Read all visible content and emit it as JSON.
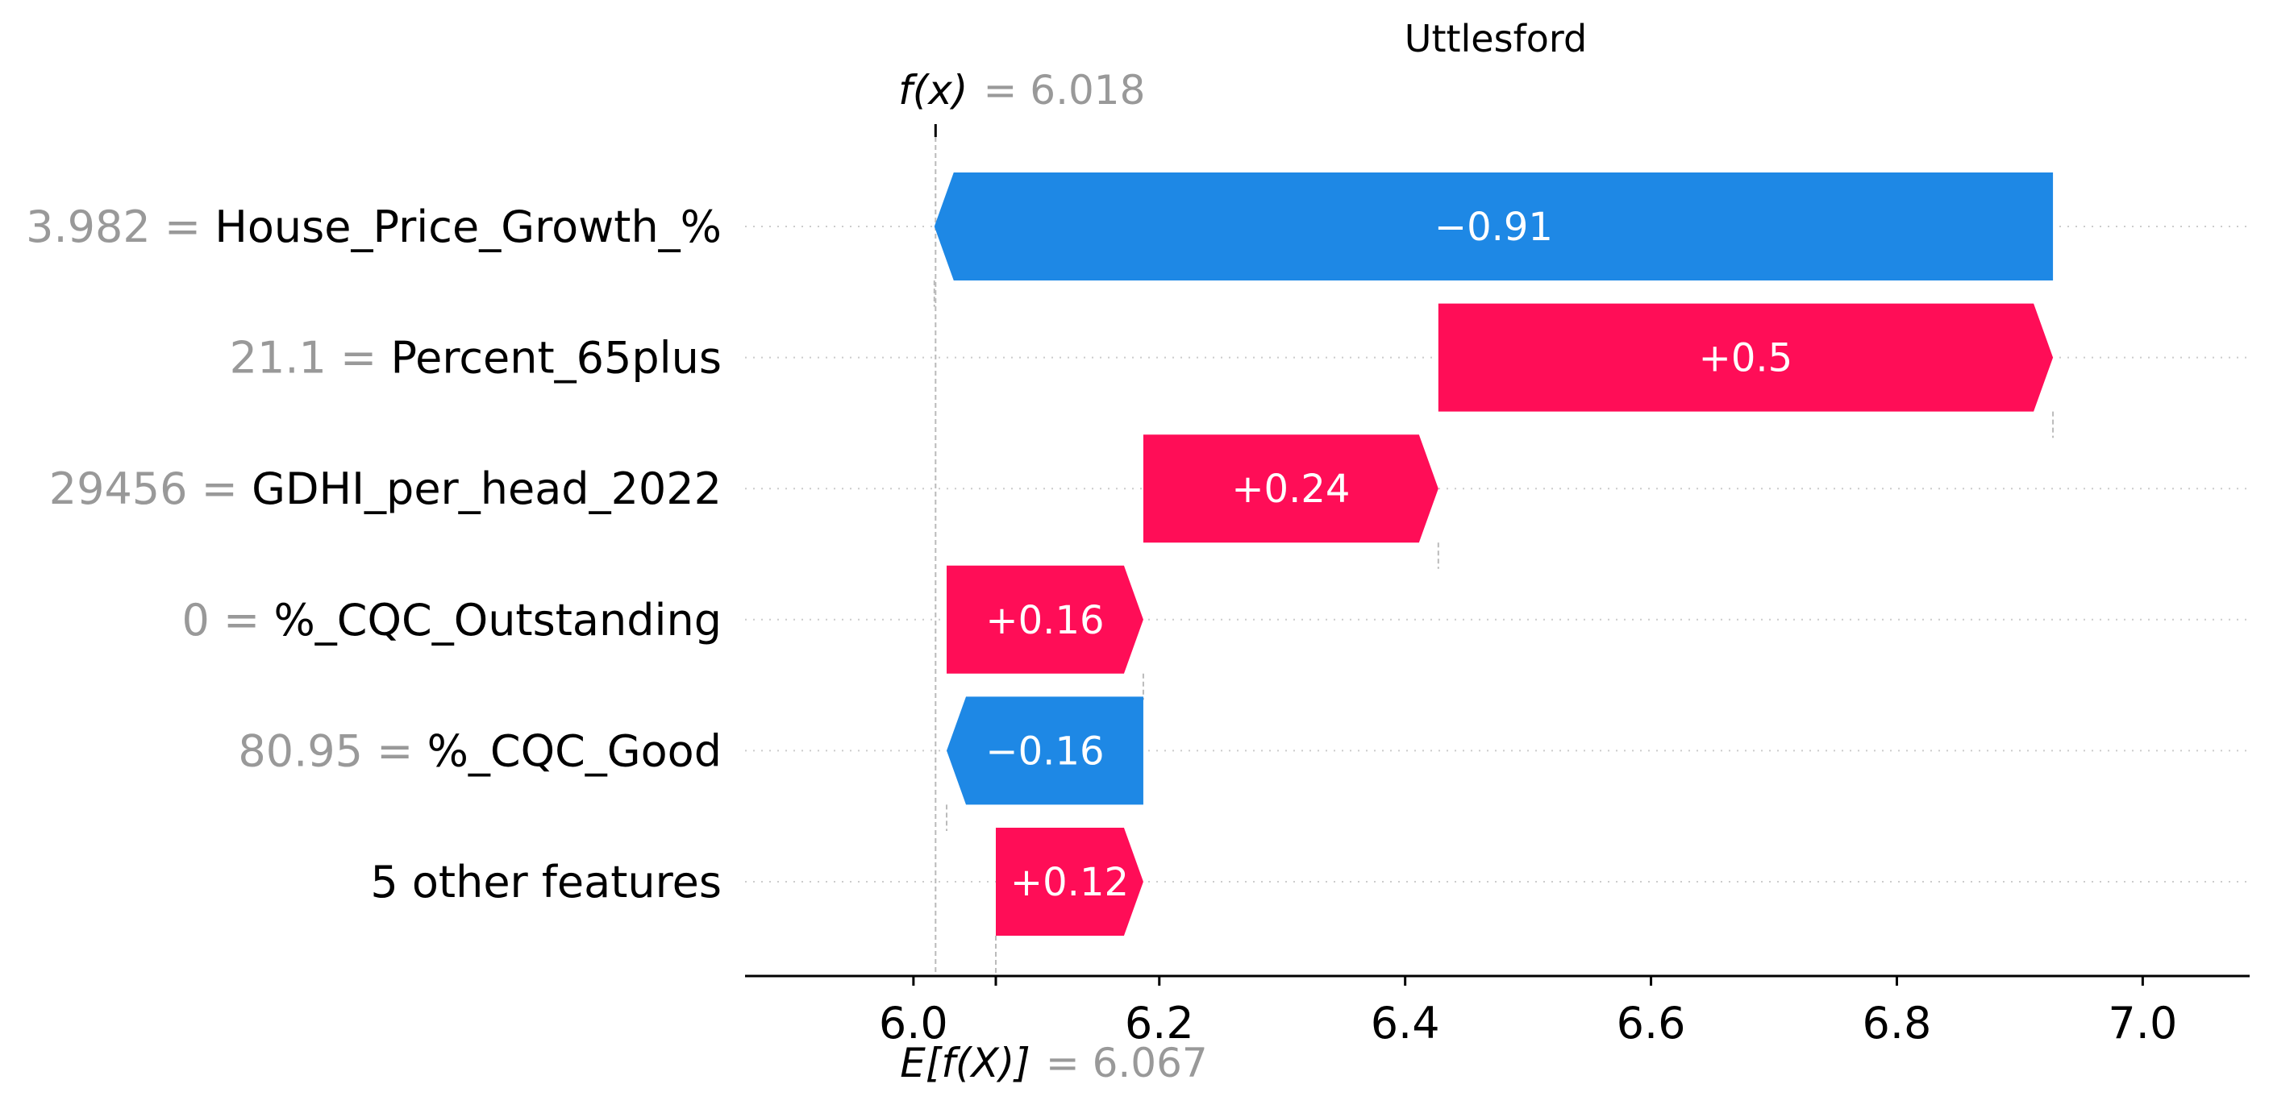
{
  "chart_data": {
    "type": "bar",
    "title": "Uttlesford",
    "fx": {
      "label": "f(x)",
      "value_text": "= 6.018",
      "value": 6.018
    },
    "efx": {
      "label": "E[f(X)]",
      "value_text": "= 6.067",
      "value": 6.067
    },
    "features": [
      {
        "value": "3.982",
        "name": "House_Price_Growth_%",
        "contribution": -0.91,
        "label": "−0.91"
      },
      {
        "value": "21.1",
        "name": "Percent_65plus",
        "contribution": 0.5,
        "label": "+0.5"
      },
      {
        "value": "29456",
        "name": "GDHI_per_head_2022",
        "contribution": 0.24,
        "label": "+0.24"
      },
      {
        "value": "0",
        "name": "%_CQC_Outstanding",
        "contribution": 0.16,
        "label": "+0.16"
      },
      {
        "value": "80.95",
        "name": "%_CQC_Good",
        "contribution": -0.16,
        "label": "−0.16"
      },
      {
        "value": "",
        "name": "5 other features",
        "contribution": 0.12,
        "label": "+0.12"
      }
    ],
    "xticks": [
      "6.0",
      "6.2",
      "6.4",
      "6.6",
      "6.8",
      "7.0"
    ],
    "tick_values": [
      6.0,
      6.2,
      6.4,
      6.6,
      6.8,
      7.0
    ],
    "xlim": [
      5.863,
      7.087
    ],
    "colors": {
      "positive": "#ff0d57",
      "negative": "#1e88e5",
      "muted": "#999999"
    }
  }
}
